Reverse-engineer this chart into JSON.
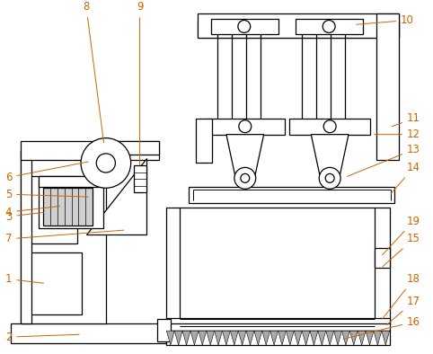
{
  "background_color": "#ffffff",
  "line_color": "#000000",
  "label_color": "#cc6600",
  "fig_width": 4.82,
  "fig_height": 3.94,
  "dpi": 100
}
